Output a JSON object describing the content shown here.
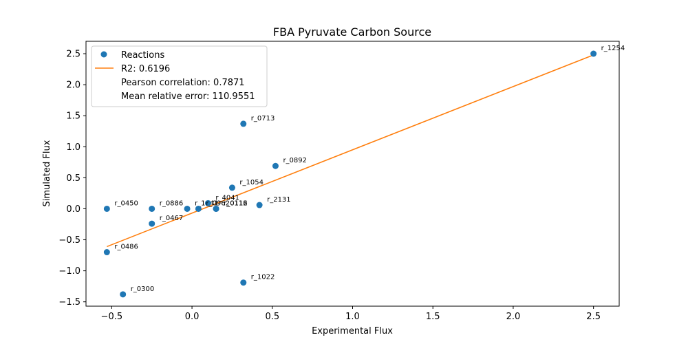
{
  "chart_data": {
    "type": "scatter",
    "title": "FBA Pyruvate Carbon Source",
    "xlabel": "Experimental Flux",
    "ylabel": "Simulated Flux",
    "xlim": [
      -0.66,
      2.66
    ],
    "ylim": [
      -1.57,
      2.7
    ],
    "xticks": [
      -0.5,
      0.0,
      0.5,
      1.0,
      1.5,
      2.0,
      2.5
    ],
    "xtick_labels": [
      "−0.5",
      "0.0",
      "0.5",
      "1.0",
      "1.5",
      "2.0",
      "2.5"
    ],
    "yticks": [
      -1.5,
      -1.0,
      -0.5,
      0.0,
      0.5,
      1.0,
      1.5,
      2.0,
      2.5
    ],
    "ytick_labels": [
      "−1.5",
      "−1.0",
      "−0.5",
      "0.0",
      "0.5",
      "1.0",
      "1.5",
      "2.0",
      "2.5"
    ],
    "grid": false,
    "legend_position": "upper-left",
    "legend": [
      {
        "label": "Reactions",
        "kind": "marker"
      },
      {
        "label": "R2: 0.6196",
        "kind": "line"
      },
      {
        "label": "Pearson correlation: 0.7871",
        "kind": "none"
      },
      {
        "label": "Mean relative error: 110.9551",
        "kind": "none"
      }
    ],
    "points": [
      {
        "label": "r_1254",
        "x": 2.5,
        "y": 2.5
      },
      {
        "label": "r_0713",
        "x": 0.32,
        "y": 1.37
      },
      {
        "label": "r_0892",
        "x": 0.52,
        "y": 0.69
      },
      {
        "label": "r_1054",
        "x": 0.25,
        "y": 0.34
      },
      {
        "label": "r_2131",
        "x": 0.42,
        "y": 0.06
      },
      {
        "label": "r_0450",
        "x": -0.53,
        "y": 0.0
      },
      {
        "label": "r_0886",
        "x": -0.25,
        "y": 0.0
      },
      {
        "label": "r_1041",
        "x": -0.03,
        "y": 0.0
      },
      {
        "label": "r_4041",
        "x": 0.1,
        "y": 0.09
      },
      {
        "label": "r_0962",
        "x": 0.04,
        "y": 0.0
      },
      {
        "label": "r_0112",
        "x": 0.15,
        "y": 0.0
      },
      {
        "label": "r_0116",
        "x": 0.15,
        "y": 0.0
      },
      {
        "label": "r_0467",
        "x": -0.25,
        "y": -0.24
      },
      {
        "label": "r_0486",
        "x": -0.53,
        "y": -0.7
      },
      {
        "label": "r_1022",
        "x": 0.32,
        "y": -1.19
      },
      {
        "label": "r_0300",
        "x": -0.43,
        "y": -1.38
      }
    ],
    "fit_line": {
      "name": "R2: 0.6196",
      "x": [
        -0.53,
        2.5
      ],
      "y": [
        -0.61,
        2.48
      ]
    }
  },
  "colors": {
    "points": "#1f77b4",
    "fit_line": "#ff7f0e",
    "axes": "#000000"
  }
}
